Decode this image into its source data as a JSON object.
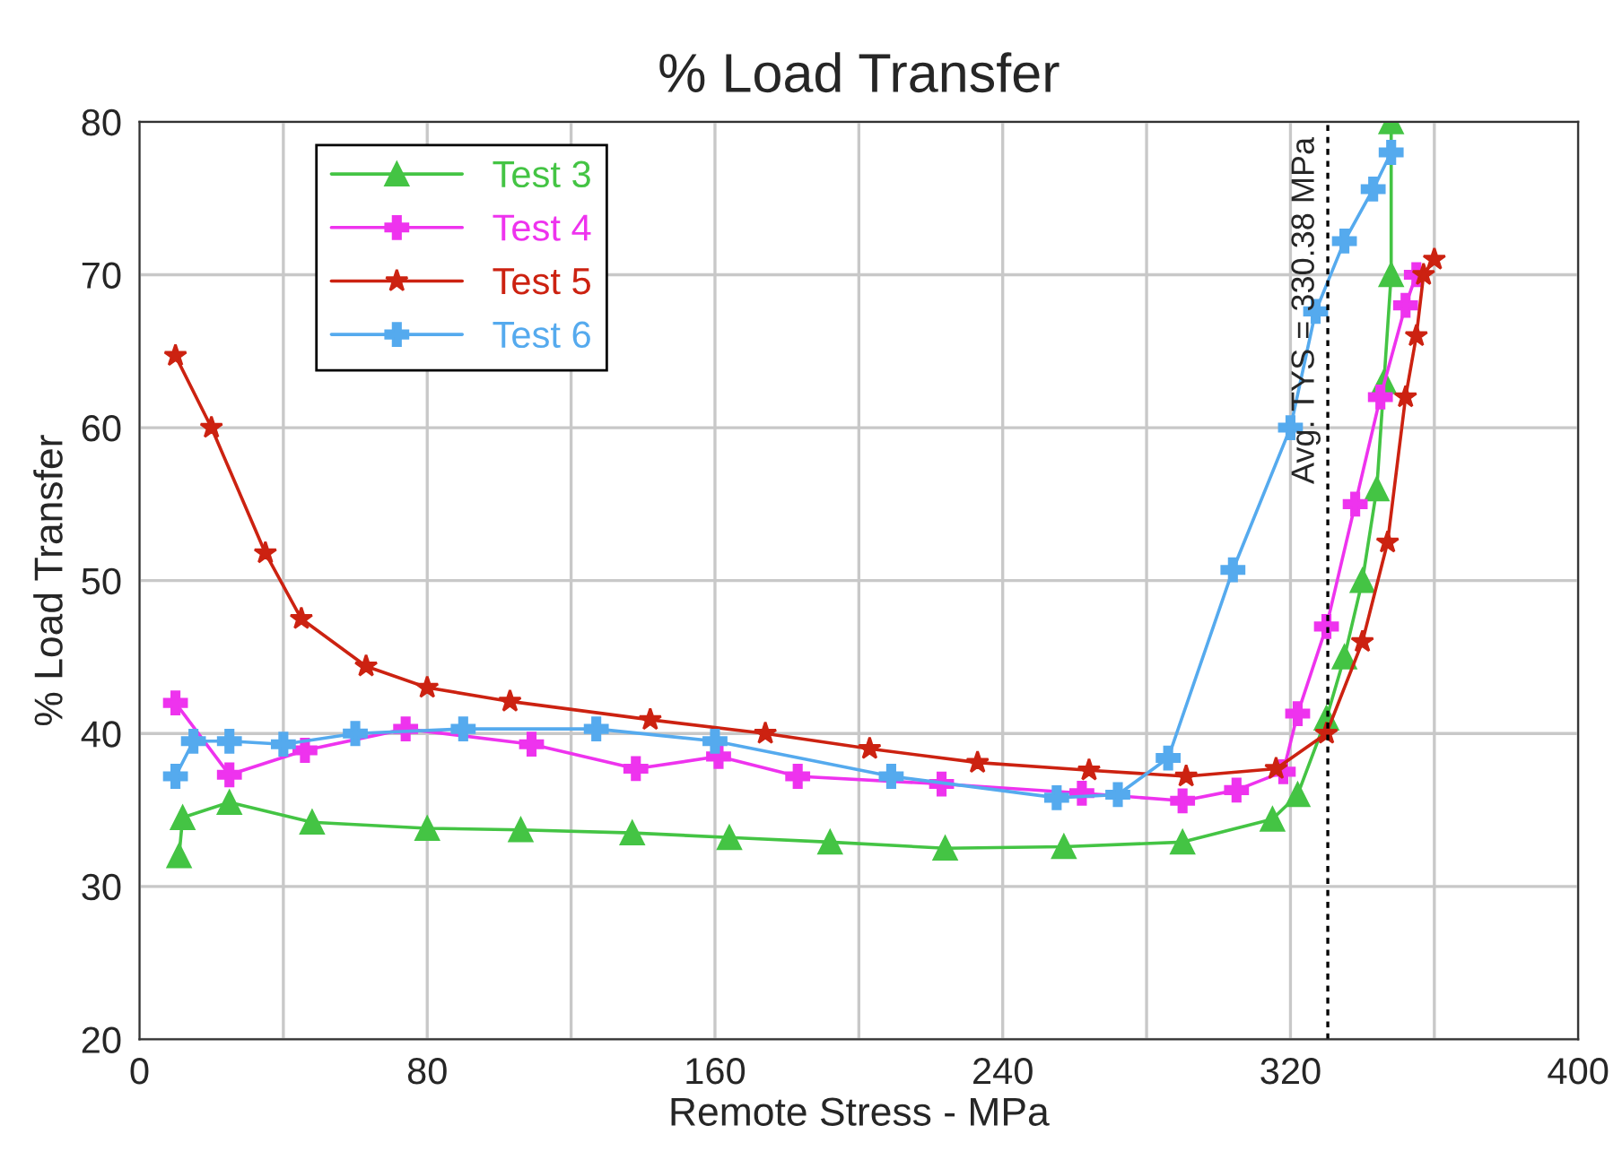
{
  "chart_data": {
    "type": "line",
    "title": "% Load Transfer",
    "xlabel": "Remote Stress - MPa",
    "ylabel": "% Load Transfer",
    "xlim": [
      0,
      400
    ],
    "ylim": [
      20,
      80
    ],
    "xticks": [
      0,
      {
        "value": 40,
        "label": null
      },
      80,
      {
        "value": 120,
        "label": null
      },
      160,
      {
        "value": 200,
        "label": null
      },
      240,
      {
        "value": 280,
        "label": null
      },
      320,
      {
        "value": 360,
        "label": null
      },
      400
    ],
    "yticks": [
      20,
      30,
      40,
      50,
      60,
      70,
      80
    ],
    "grid": true,
    "legend": "top left",
    "series": [
      {
        "name": "Test 3",
        "color": "#44c444",
        "marker": "triangle",
        "x": [
          11,
          12,
          25,
          48,
          80,
          106,
          137,
          164,
          192,
          224,
          257,
          290,
          315,
          322,
          330,
          335,
          340,
          344,
          346,
          348,
          348
        ],
        "values": [
          32,
          34.5,
          35.5,
          34.2,
          33.8,
          33.7,
          33.5,
          33.2,
          32.9,
          32.5,
          32.6,
          32.9,
          34.4,
          36,
          41,
          45,
          50,
          56,
          63,
          70,
          80
        ]
      },
      {
        "name": "Test 4",
        "color": "#ee33ee",
        "marker": "cross",
        "x": [
          10,
          25,
          46,
          74,
          109,
          138,
          161,
          183,
          223,
          262,
          290,
          305,
          318,
          322,
          330,
          338,
          345,
          352,
          355
        ],
        "values": [
          42,
          37.3,
          38.9,
          40.3,
          39.3,
          37.7,
          38.5,
          37.2,
          36.7,
          36.1,
          35.6,
          36.3,
          37.5,
          41.3,
          47,
          55,
          62,
          68,
          70
        ]
      },
      {
        "name": "Test 5",
        "color": "#cc2211",
        "marker": "star",
        "x": [
          10,
          20,
          35,
          45,
          63,
          80,
          103,
          142,
          174,
          203,
          233,
          264,
          291,
          316,
          330,
          340,
          347,
          352,
          355,
          357,
          360
        ],
        "values": [
          64.7,
          60,
          51.8,
          47.5,
          44.4,
          43,
          42.1,
          40.9,
          40,
          39,
          38.1,
          37.6,
          37.2,
          37.7,
          40,
          46,
          52.5,
          62,
          66,
          70,
          71
        ]
      },
      {
        "name": "Test 6",
        "color": "#55aaee",
        "marker": "cross",
        "x": [
          10,
          15,
          25,
          40,
          60,
          90,
          127,
          160,
          209,
          255,
          272,
          286,
          304,
          320,
          327,
          335,
          343,
          348
        ],
        "values": [
          37.2,
          39.5,
          39.5,
          39.3,
          40,
          40.3,
          40.3,
          39.5,
          37.2,
          35.8,
          36,
          38.4,
          50.7,
          60,
          67.6,
          72.2,
          75.6,
          78
        ]
      }
    ],
    "ref_lines": [
      {
        "axis": "x",
        "value": 330.38,
        "label": "Avg. TYS = 330.38 MPa",
        "color": "#000000",
        "line_style": "dotted"
      }
    ]
  }
}
